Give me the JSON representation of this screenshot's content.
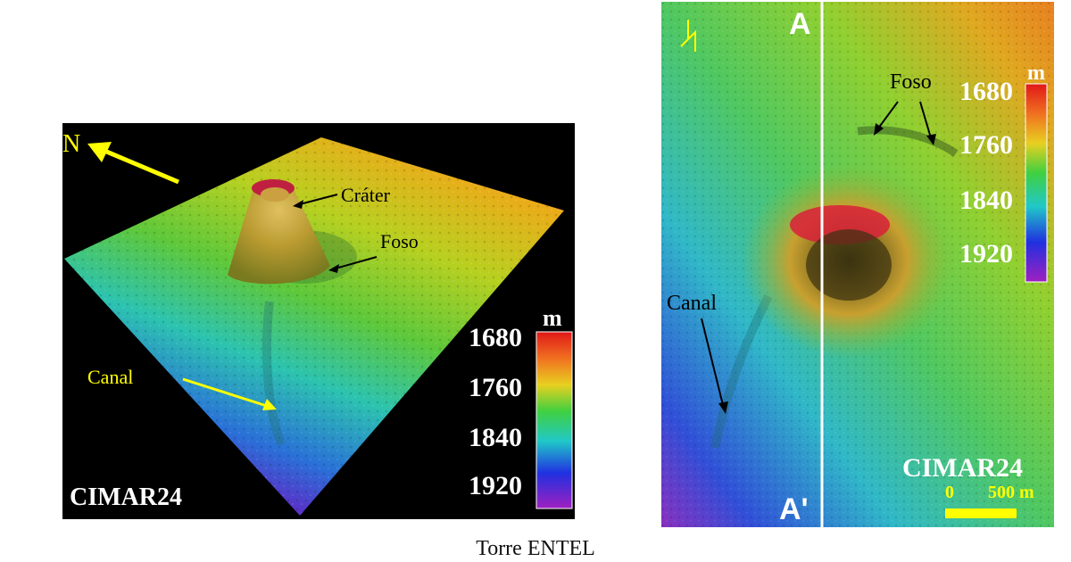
{
  "left_map": {
    "north_label": "N",
    "labels": {
      "crater": "Cráter",
      "foso": "Foso",
      "canal": "Canal"
    },
    "brand": "CIMAR24",
    "legend": {
      "unit": "m",
      "ticks": [
        "1680",
        "1760",
        "1840",
        "1920"
      ]
    },
    "colors": {
      "north_arrow": "#ffff00",
      "canal_label": "#ffff00",
      "background": "#000000"
    }
  },
  "right_map": {
    "section_top": "A",
    "section_bottom": "A'",
    "labels": {
      "foso": "Foso",
      "canal": "Canal"
    },
    "brand": "CIMAR24",
    "legend": {
      "unit": "m",
      "ticks": [
        "1680",
        "1760",
        "1840",
        "1920"
      ]
    },
    "scale_bar": {
      "start": "0",
      "end": "500 m"
    },
    "colors": {
      "scale_bar": "#ffff00",
      "section_line": "#ffffff"
    }
  },
  "caption": "Torre ENTEL"
}
